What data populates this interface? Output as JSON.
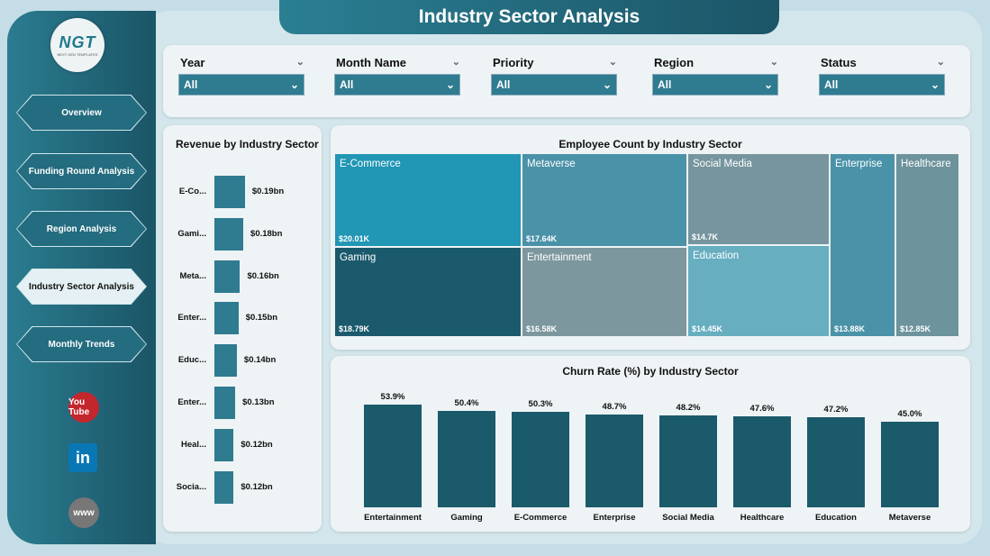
{
  "header": {
    "title": "Industry Sector Analysis"
  },
  "logo": {
    "text": "NGT",
    "subtitle": "NEXT GEN TEMPLATES"
  },
  "nav": [
    {
      "label": "Overview"
    },
    {
      "label": "Funding Round Analysis"
    },
    {
      "label": "Region Analysis"
    },
    {
      "label": "Industry Sector Analysis",
      "active": true
    },
    {
      "label": "Monthly Trends"
    }
  ],
  "social": [
    {
      "icon": "youtube-icon",
      "label": "You Tube",
      "color": "#c4262e"
    },
    {
      "icon": "linkedin-icon",
      "label": "in",
      "color": "#0a77b5"
    },
    {
      "icon": "globe-icon",
      "label": "www",
      "color": "#777777"
    }
  ],
  "filters": [
    {
      "label": "Year",
      "value": "All"
    },
    {
      "label": "Month Name",
      "value": "All"
    },
    {
      "label": "Priority",
      "value": "All"
    },
    {
      "label": "Region",
      "value": "All"
    },
    {
      "label": "Status",
      "value": "All"
    }
  ],
  "chart_data": [
    {
      "type": "bar",
      "orientation": "horizontal",
      "title": "Revenue by Industry Sector",
      "categories": [
        "E-Co...",
        "Gami...",
        "Meta...",
        "Enter...",
        "Educ...",
        "Enter...",
        "Heal...",
        "Socia..."
      ],
      "values": [
        0.19,
        0.18,
        0.16,
        0.15,
        0.14,
        0.13,
        0.12,
        0.12
      ],
      "labels": [
        "$0.19bn",
        "$0.18bn",
        "$0.16bn",
        "$0.15bn",
        "$0.14bn",
        "$0.13bn",
        "$0.12bn",
        "$0.12bn"
      ],
      "color": "#2f7b90"
    },
    {
      "type": "treemap",
      "title": "Employee Count by Industry Sector",
      "categories": [
        "E-Commerce",
        "Metaverse",
        "Social Media",
        "Gaming",
        "Entertainment",
        "Education",
        "Enterprise",
        "Healthcare"
      ],
      "values": [
        20010,
        17640,
        14700,
        18790,
        16580,
        14450,
        13880,
        12850
      ],
      "labels": [
        "$20.01K",
        "$17.64K",
        "$14.7K",
        "$18.79K",
        "$16.58K",
        "$14.45K",
        "$13.88K",
        "$12.85K"
      ],
      "colors": [
        "#2196b5",
        "#4a92a8",
        "#76959e",
        "#1b5a6c",
        "#7c979d",
        "#66aec0",
        "#4a92a8",
        "#6d939c"
      ]
    },
    {
      "type": "bar",
      "title": "Churn Rate (%) by Industry Sector",
      "categories": [
        "Entertainment",
        "Gaming",
        "E-Commerce",
        "Enterprise",
        "Social Media",
        "Healthcare",
        "Education",
        "Metaverse"
      ],
      "values": [
        53.9,
        50.4,
        50.3,
        48.7,
        48.2,
        47.6,
        47.2,
        45.0
      ],
      "labels": [
        "53.9%",
        "50.4%",
        "50.3%",
        "48.7%",
        "48.2%",
        "47.6%",
        "47.2%",
        "45.0%"
      ],
      "color": "#1a5a6b"
    }
  ]
}
